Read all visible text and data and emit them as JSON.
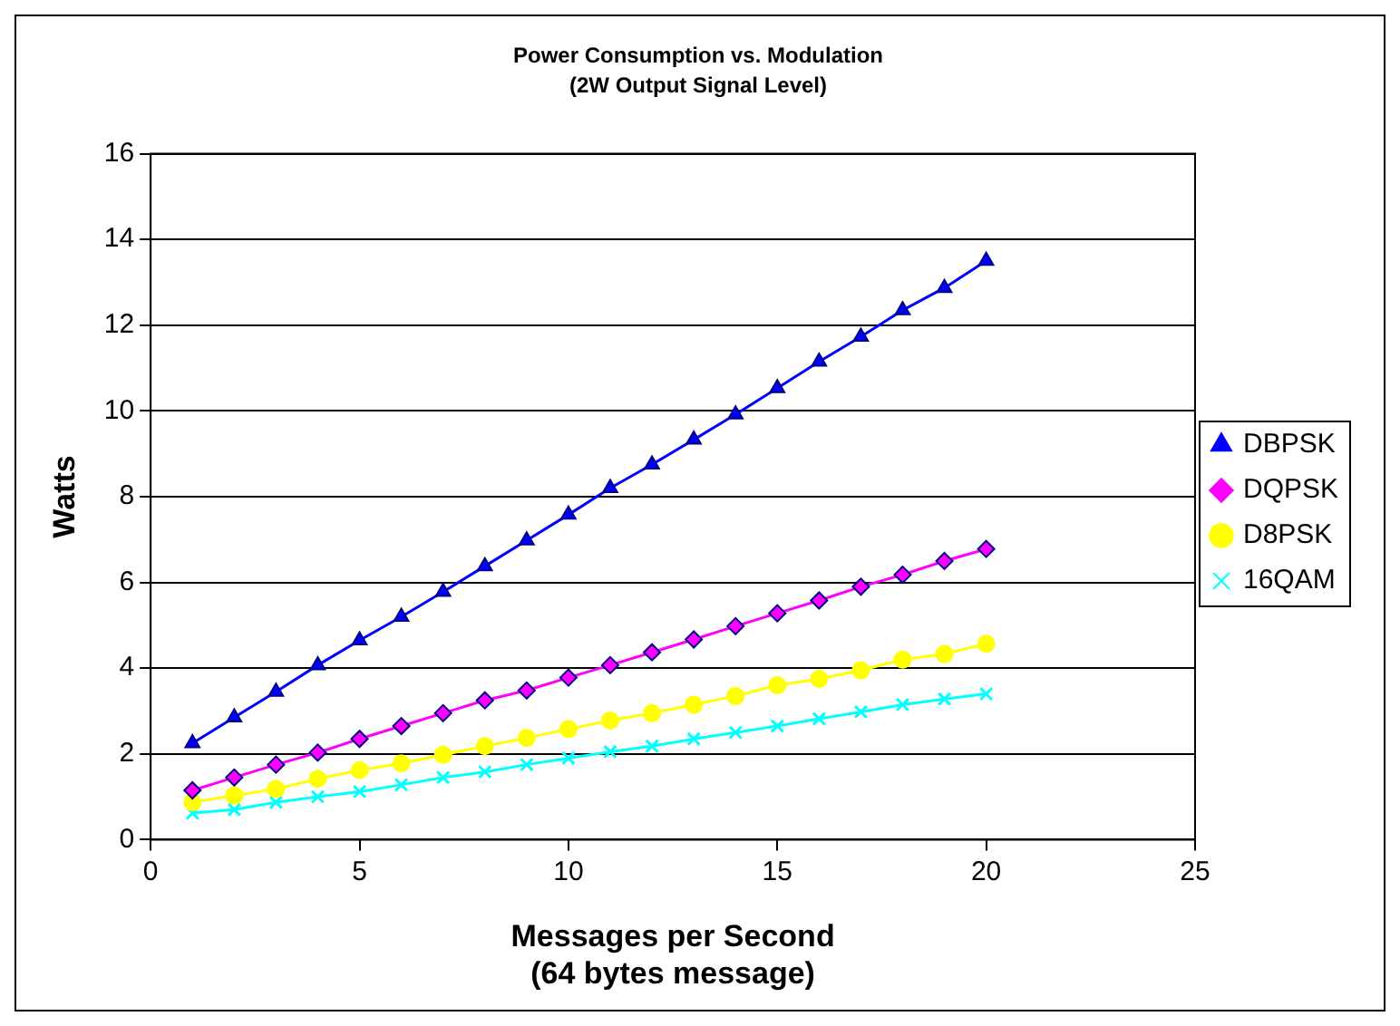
{
  "chart_data": {
    "type": "line",
    "title": "Power Consumption vs. Modulation",
    "subtitle": "(2W Output Signal Level)",
    "xlabel": [
      "Messages per Second",
      "(64 bytes message)"
    ],
    "ylabel": "Watts",
    "x": [
      1,
      2,
      3,
      4,
      5,
      6,
      7,
      8,
      9,
      10,
      11,
      12,
      13,
      14,
      15,
      16,
      17,
      18,
      19,
      20
    ],
    "series": [
      {
        "name": "DBPSK",
        "color": "#0000ff",
        "marker": "triangle",
        "values": [
          2.25,
          2.85,
          3.45,
          4.07,
          4.65,
          5.2,
          5.78,
          6.38,
          6.98,
          7.58,
          8.2,
          8.75,
          9.33,
          9.92,
          10.53,
          11.15,
          11.73,
          12.35,
          12.87,
          13.5
        ]
      },
      {
        "name": "DQPSK",
        "color": "#ff00ff",
        "marker": "diamond",
        "values": [
          1.15,
          1.45,
          1.75,
          2.03,
          2.35,
          2.65,
          2.95,
          3.25,
          3.48,
          3.78,
          4.07,
          4.37,
          4.67,
          4.98,
          5.28,
          5.58,
          5.9,
          6.18,
          6.5,
          6.78
        ]
      },
      {
        "name": "D8PSK",
        "color": "#ffff00",
        "marker": "circle",
        "values": [
          0.87,
          1.03,
          1.18,
          1.42,
          1.62,
          1.78,
          1.98,
          2.18,
          2.37,
          2.58,
          2.78,
          2.95,
          3.15,
          3.35,
          3.6,
          3.75,
          3.95,
          4.2,
          4.33,
          4.57
        ]
      },
      {
        "name": "16QAM",
        "color": "#00ffff",
        "marker": "cross",
        "values": [
          0.62,
          0.7,
          0.87,
          1.0,
          1.12,
          1.28,
          1.45,
          1.58,
          1.75,
          1.9,
          2.05,
          2.18,
          2.35,
          2.5,
          2.65,
          2.82,
          2.98,
          3.15,
          3.28,
          3.4
        ]
      }
    ],
    "xlim": [
      0,
      25
    ],
    "xticks": [
      0,
      5,
      10,
      15,
      20,
      25
    ],
    "ylim": [
      0,
      16
    ],
    "yticks": [
      0,
      2,
      4,
      6,
      8,
      10,
      12,
      14,
      16
    ],
    "grid": "y",
    "legend": "right",
    "line_style": "solid"
  }
}
